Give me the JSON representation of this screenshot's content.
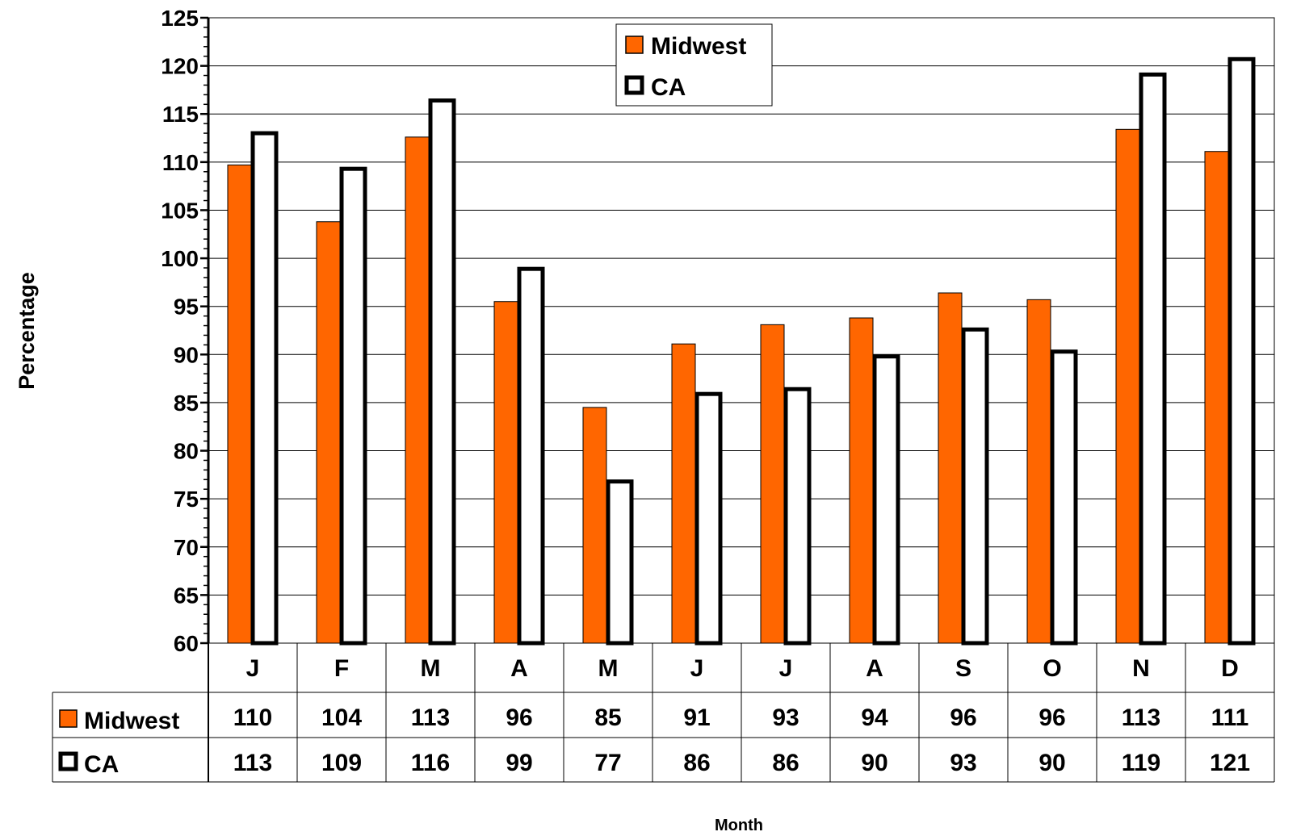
{
  "chart_data": {
    "type": "bar",
    "xlabel": "Month",
    "ylabel": "Percentage",
    "ylim": [
      60,
      125
    ],
    "yticks": [
      60,
      65,
      70,
      75,
      80,
      85,
      90,
      95,
      100,
      105,
      110,
      115,
      120,
      125
    ],
    "grid": true,
    "legend_position": "top-center",
    "categories": [
      "J",
      "F",
      "M",
      "A",
      "M",
      "J",
      "J",
      "A",
      "S",
      "O",
      "N",
      "D"
    ],
    "series": [
      {
        "name": "Midwest",
        "color": "#ff6600",
        "values": [
          109.7,
          103.8,
          112.6,
          95.5,
          84.5,
          91.1,
          93.1,
          93.8,
          96.4,
          95.7,
          113.4,
          111.1
        ],
        "table_values": [
          "110",
          "104",
          "113",
          "96",
          "85",
          "91",
          "93",
          "94",
          "96",
          "96",
          "113",
          "111"
        ]
      },
      {
        "name": "CA",
        "color": "#ffffff",
        "values": [
          113,
          109.3,
          116.4,
          98.9,
          76.8,
          85.9,
          86.4,
          89.8,
          92.6,
          90.3,
          119.1,
          120.7
        ],
        "table_values": [
          "113",
          "109",
          "116",
          "99",
          "77",
          "86",
          "86",
          "90",
          "93",
          "90",
          "119",
          "121"
        ]
      }
    ]
  }
}
